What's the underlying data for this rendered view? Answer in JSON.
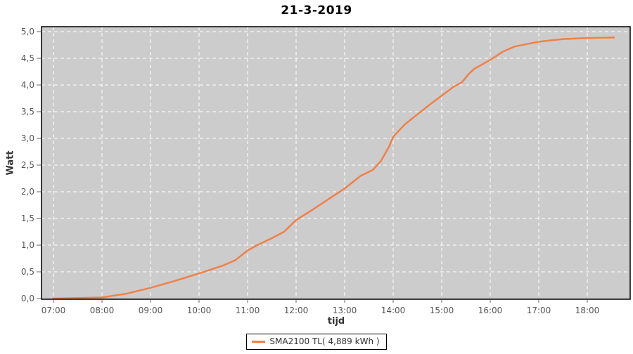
{
  "colors": {
    "page_bg": "#ffffff",
    "plot_bg": "#cccccc",
    "grid": "#ffffff",
    "plot_border": "#000000",
    "tick": "#666666",
    "tick_label": "#555555",
    "axis_title": "#333333",
    "title": "#000000",
    "series": "#f08048",
    "legend_border": "#000000",
    "legend_bg": "#ffffff",
    "legend_text": "#333333"
  },
  "chart_data": {
    "type": "line",
    "title": "21-3-2019",
    "xlabel": "tijd",
    "ylabel": "Watt",
    "legend_label": "SMA2100 TL( 4,889 kWh )",
    "legend_position": "bottom-center",
    "grid": true,
    "grid_style": "white dashed on gray plot background",
    "x_ticks": [
      "07:00",
      "08:00",
      "09:00",
      "10:00",
      "11:00",
      "12:00",
      "13:00",
      "14:00",
      "15:00",
      "16:00",
      "17:00",
      "18:00"
    ],
    "y_ticks": [
      "0,0",
      "0,5",
      "1,0",
      "1,5",
      "2,0",
      "2,5",
      "3,0",
      "3,5",
      "4,0",
      "4,5",
      "5,0"
    ],
    "ylim": [
      0,
      5.1
    ],
    "xlim": [
      "06:45",
      "18:53"
    ],
    "series": [
      {
        "name": "SMA2100 TL",
        "color": "#f08048",
        "total_energy_kwh": "4,889",
        "points": [
          [
            "07:00",
            0.0
          ],
          [
            "07:30",
            0.01
          ],
          [
            "08:00",
            0.02
          ],
          [
            "08:30",
            0.09
          ],
          [
            "09:00",
            0.2
          ],
          [
            "09:30",
            0.33
          ],
          [
            "10:00",
            0.47
          ],
          [
            "10:30",
            0.62
          ],
          [
            "10:45",
            0.72
          ],
          [
            "11:00",
            0.9
          ],
          [
            "11:12",
            1.0
          ],
          [
            "11:30",
            1.13
          ],
          [
            "11:45",
            1.25
          ],
          [
            "12:00",
            1.47
          ],
          [
            "12:20",
            1.66
          ],
          [
            "12:40",
            1.86
          ],
          [
            "13:00",
            2.06
          ],
          [
            "13:20",
            2.3
          ],
          [
            "13:35",
            2.41
          ],
          [
            "13:45",
            2.58
          ],
          [
            "13:55",
            2.85
          ],
          [
            "14:00",
            3.03
          ],
          [
            "14:15",
            3.27
          ],
          [
            "14:30",
            3.45
          ],
          [
            "14:45",
            3.63
          ],
          [
            "15:00",
            3.8
          ],
          [
            "15:15",
            3.97
          ],
          [
            "15:25",
            4.05
          ],
          [
            "15:33",
            4.2
          ],
          [
            "15:40",
            4.3
          ],
          [
            "16:00",
            4.47
          ],
          [
            "16:15",
            4.62
          ],
          [
            "16:30",
            4.72
          ],
          [
            "17:00",
            4.81
          ],
          [
            "17:30",
            4.86
          ],
          [
            "18:00",
            4.88
          ],
          [
            "18:33",
            4.89
          ]
        ]
      }
    ]
  }
}
